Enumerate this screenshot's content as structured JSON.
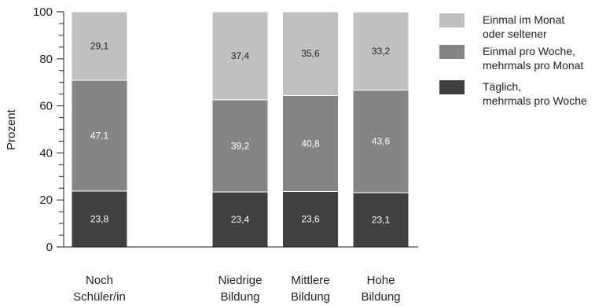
{
  "chart_data": {
    "type": "bar",
    "stacked": true,
    "xlabel": "",
    "ylabel": "Prozent",
    "ylim": [
      0,
      100
    ],
    "yticks": [
      0,
      20,
      40,
      60,
      80,
      100
    ],
    "grid": false,
    "legend_position": "right",
    "categories": [
      [
        "Noch",
        "Schüler/in"
      ],
      [
        "Niedrige",
        "Bildung"
      ],
      [
        "Mittlere",
        "Bildung"
      ],
      [
        "Hohe",
        "Bildung"
      ]
    ],
    "category_slots": [
      0,
      2,
      3,
      4
    ],
    "series": [
      {
        "name": [
          "Täglich,",
          "mehrmals pro Woche"
        ],
        "color": "#404040",
        "label_color": "#ffffff",
        "values": [
          23.8,
          23.4,
          23.6,
          23.1
        ],
        "labels": [
          "23,8",
          "23,4",
          "23,6",
          "23,1"
        ]
      },
      {
        "name": [
          "Einmal pro Woche,",
          "mehrmals pro Monat"
        ],
        "color": "#858585",
        "label_color": "#ffffff",
        "values": [
          47.1,
          39.2,
          40.8,
          43.6
        ],
        "labels": [
          "47,1",
          "39,2",
          "40,8",
          "43,6"
        ]
      },
      {
        "name": [
          "Einmal im Monat",
          "oder seltener"
        ],
        "color": "#c0c0c0",
        "label_color": "#222222",
        "values": [
          29.1,
          37.4,
          35.6,
          33.2
        ],
        "labels": [
          "29,1",
          "37,4",
          "35,6",
          "33,2"
        ]
      }
    ],
    "legend_order": [
      2,
      1,
      0
    ]
  }
}
